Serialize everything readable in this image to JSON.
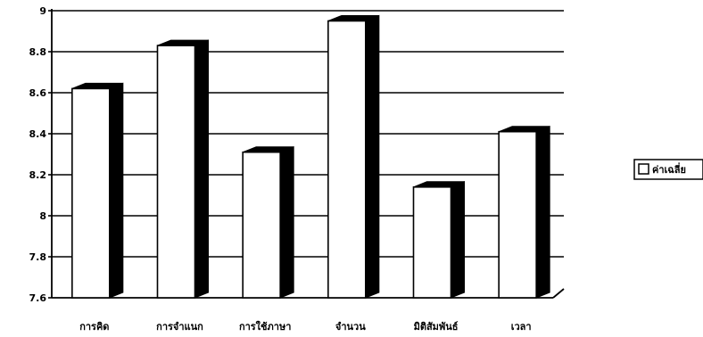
{
  "chart_data": {
    "type": "bar",
    "categories": [
      "การคิด",
      "การจำแนก",
      "การใช้ภาษา",
      "จำนวน",
      "มิติสัมพันธ์",
      "เวลา"
    ],
    "series": [
      {
        "name": "ค่าเฉลี่ย",
        "values": [
          8.62,
          8.83,
          8.31,
          8.95,
          8.14,
          8.41
        ]
      }
    ],
    "ylim": [
      7.6,
      9
    ],
    "yticks": [
      "9",
      "8.8",
      "8.6",
      "8.4",
      "8.2",
      "8",
      "7.8",
      "7.6"
    ],
    "grid": true,
    "legend_position": "right",
    "bar_style": "3d",
    "colors": {
      "bar_face": "#ffffff",
      "bar_side": "#000000",
      "grid": "#000000"
    }
  }
}
